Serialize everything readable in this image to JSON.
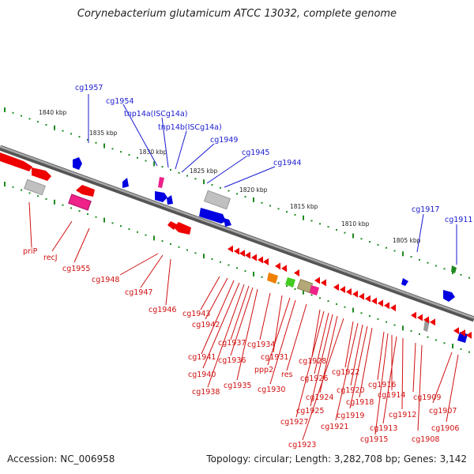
{
  "title": "Corynebacterium glutamicum ATCC 13032, complete genome",
  "footer": {
    "accession": "Accession: NC_006958",
    "topology": "Topology: circular; Length: 3,282,708 bp; Genes: 3,142"
  },
  "scale_labels": [
    "1840 kbp",
    "1835 kbp",
    "1830 kbp",
    "1825 kbp",
    "1820 kbp",
    "1815 kbp",
    "1810 kbp",
    "1805 kbp"
  ],
  "top_labels": [
    "cg1957",
    "cg1954",
    "tnp14a(ISCg14a)",
    "tnp14b(ISCg14a)",
    "cg1949",
    "cg1945",
    "cg1944",
    "cg1917",
    "cg1911"
  ],
  "bottom_labels": [
    "priP",
    "recJ",
    "cg1955",
    "cg1948",
    "cg1947",
    "cg1946",
    "cg1943",
    "cg1942",
    "cg1941",
    "cg1940",
    "cg1938",
    "cg1937",
    "cg1936",
    "cg1935",
    "cg1934",
    "cg1931",
    "ppp2",
    "cg1930",
    "res",
    "cg1928",
    "cg1927",
    "cg1926",
    "cg1925",
    "cg1924",
    "cg1923",
    "cg1922",
    "cg1921",
    "cg1920",
    "cg1919",
    "cg1918",
    "cg1916",
    "cg1915",
    "cg1914",
    "cg1913",
    "cg1912",
    "cg1909",
    "cg1908",
    "cg1907",
    "cg1906"
  ],
  "colors": {
    "backbone": "#808080",
    "forward_gene": "#0000e0",
    "reverse_gene": "#ee0000",
    "forward_label": "#1a1ad0",
    "reverse_label": "#d01010",
    "pseudogene": "#c0c0c0",
    "mobile_element": "#ee2288",
    "rna_orange": "#f08000",
    "rna_green": "#44cc22",
    "misc_khaki": "#b4a878",
    "tick": "#208a20"
  }
}
